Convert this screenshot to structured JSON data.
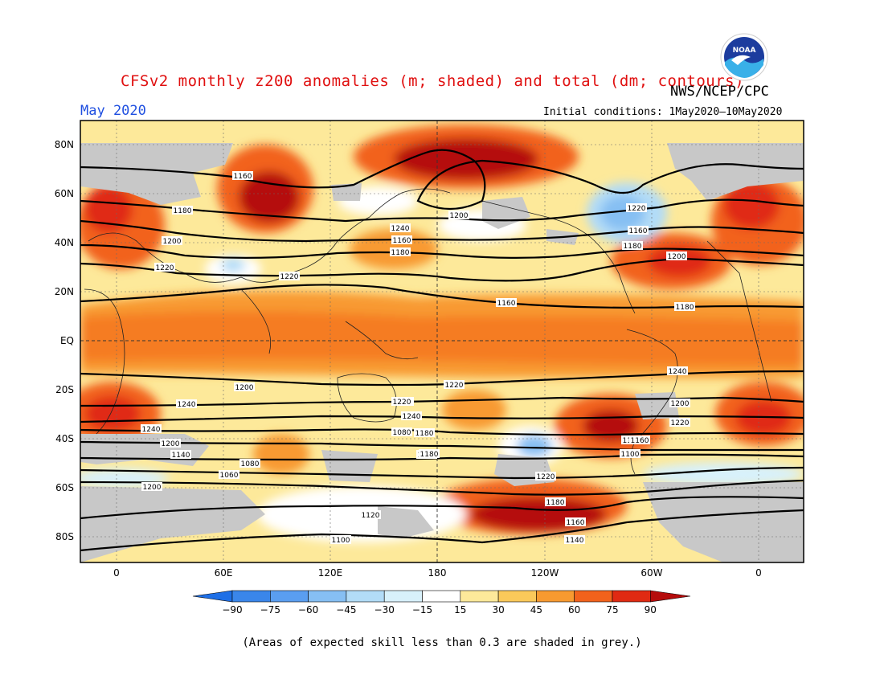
{
  "header": {
    "title": "CFSv2 monthly z200 anomalies (m; shaded) and total (dm; contours)",
    "agency": "NWS/NCEP/CPC",
    "month": "May 2020",
    "initial_conditions": "Initial conditions: 1May2020–10May2020"
  },
  "logo": {
    "text": "NOAA",
    "name": "noaa-logo"
  },
  "map": {
    "lat_labels": [
      "80N",
      "60N",
      "40N",
      "20N",
      "EQ",
      "20S",
      "40S",
      "60S",
      "80S"
    ],
    "lon_labels": [
      "0",
      "60E",
      "120E",
      "180",
      "120W",
      "60W",
      "0"
    ],
    "contour_labels": [
      "1160",
      "1180",
      "1200",
      "1220",
      "1240",
      "1160",
      "1180",
      "1200",
      "1220",
      "1160",
      "1180",
      "1200",
      "1220",
      "1160",
      "1180",
      "1200",
      "1220",
      "1240",
      "1240",
      "1240",
      "1240",
      "1240",
      "1240",
      "1220",
      "1200",
      "1180",
      "1160",
      "1140",
      "1120",
      "1100",
      "1080",
      "1060",
      "1220",
      "1200",
      "1180",
      "1160",
      "1140",
      "1120",
      "1100",
      "1080",
      "1180",
      "1160",
      "1220",
      "1200"
    ]
  },
  "colorbar": {
    "labels": [
      "-90",
      "-75",
      "-60",
      "-45",
      "-30",
      "-15",
      "15",
      "30",
      "45",
      "60",
      "75",
      "90"
    ],
    "colors": [
      "#1e6fe6",
      "#3a86ea",
      "#5a9ef0",
      "#86bff3",
      "#b2dcf7",
      "#d8f1fb",
      "#ffffff",
      "#fde99a",
      "#fbc95a",
      "#f89a30",
      "#f2621c",
      "#e02a12",
      "#b50c0c"
    ]
  },
  "footer": {
    "skill_note": "(Areas of expected skill less than 0.3 are shaded in grey.)"
  },
  "colors": {
    "title": "#e01010",
    "month": "#1f4fe0",
    "grey_skill": "#c8c8c8"
  }
}
